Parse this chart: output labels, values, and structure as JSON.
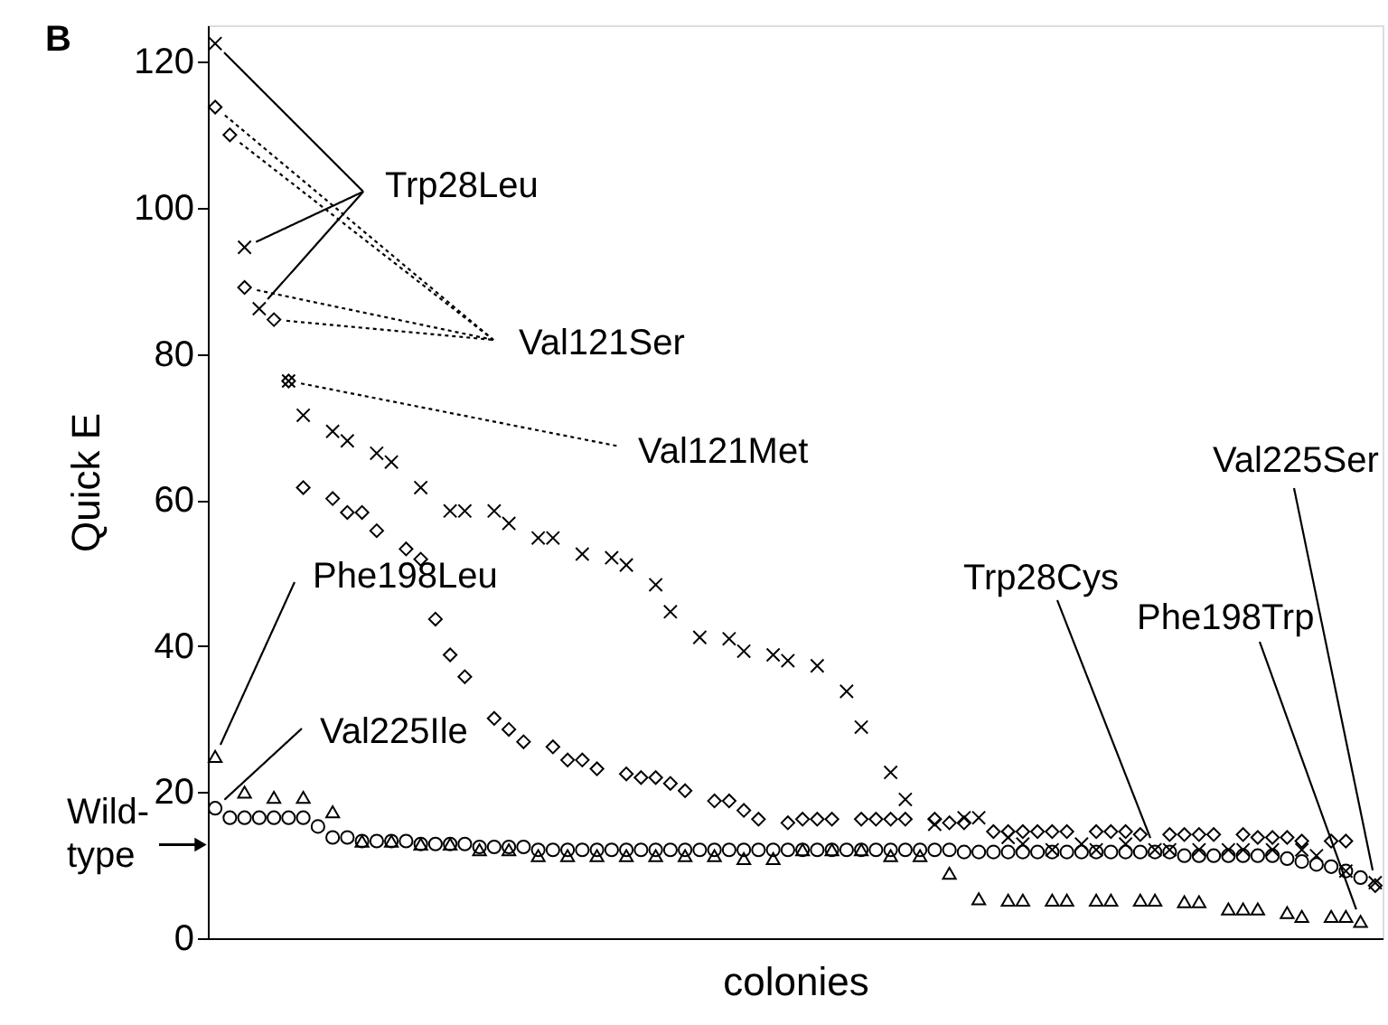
{
  "chart_data": {
    "type": "scatter",
    "title": "B",
    "ylabel": "Quick E",
    "xlabel": "colonies",
    "tick_labels": "y",
    "categories": [
      null,
      null,
      null,
      null,
      null,
      null,
      null,
      null,
      null,
      null,
      null,
      null,
      null,
      null,
      null,
      null,
      null,
      null,
      null,
      null,
      null,
      null,
      null,
      null,
      null,
      null,
      null,
      null,
      null,
      null,
      null,
      null,
      null,
      null,
      null,
      null,
      null,
      null,
      null,
      null,
      null,
      null,
      null,
      null,
      null,
      null,
      null,
      null,
      null,
      null,
      null,
      null,
      null,
      null,
      null,
      null,
      null,
      null,
      null,
      null,
      null,
      null,
      null,
      null,
      null,
      null,
      null,
      null,
      null,
      null,
      null,
      null,
      null,
      null,
      null,
      null,
      null,
      null,
      null,
      null
    ],
    "ylim": [
      0,
      125
    ],
    "yticks": [
      0,
      20,
      40,
      60,
      80,
      100,
      120
    ],
    "series": [
      {
        "color": "#000000",
        "marker": "cross",
        "values": [
          122.5,
          null,
          94.6,
          86.2,
          null,
          76.3,
          71.6,
          null,
          69.4,
          68.1,
          null,
          66.4,
          65.2,
          null,
          61.7,
          null,
          58.5,
          58.5,
          null,
          58.5,
          56.8,
          null,
          54.8,
          54.8,
          null,
          52.6,
          null,
          52.1,
          51.1,
          null,
          48.4,
          44.7,
          null,
          41.2,
          null,
          41,
          39.3,
          null,
          38.8,
          38,
          null,
          37.3,
          null,
          33.8,
          28.9,
          null,
          22.7,
          19,
          null,
          15.6,
          null,
          16.5,
          16.5,
          null,
          13.8,
          12.9,
          null,
          12.1,
          null,
          12.9,
          12.1,
          null,
          12.9,
          null,
          12.1,
          12.1,
          null,
          12.1,
          null,
          12.1,
          12.1,
          null,
          12.1,
          null,
          12.1,
          11.3,
          null,
          9.2,
          null,
          7.6
        ]
      },
      {
        "color": "#000000",
        "marker": "diamond",
        "values": [
          113.8,
          110,
          89.1,
          null,
          84.7,
          76.3,
          61.7,
          null,
          60.2,
          58.3,
          58.3,
          55.8,
          null,
          53.3,
          51.9,
          43.7,
          38.8,
          35.8,
          null,
          30.1,
          28.6,
          26.9,
          null,
          26.2,
          24.4,
          24.4,
          23.2,
          null,
          22.5,
          22,
          22,
          21.2,
          20.2,
          null,
          18.8,
          18.8,
          17.5,
          16.3,
          null,
          15.8,
          16.3,
          16.3,
          16.3,
          null,
          16.3,
          16.3,
          16.3,
          16.3,
          null,
          16.3,
          15.8,
          15.8,
          null,
          14.6,
          14.6,
          14.6,
          14.6,
          14.6,
          14.6,
          null,
          14.6,
          14.6,
          14.6,
          14.2,
          null,
          14.2,
          14.2,
          14.2,
          14.2,
          null,
          14.2,
          13.8,
          13.8,
          13.8,
          13.3,
          null,
          13.3,
          13.3,
          null,
          7.2
        ]
      },
      {
        "color": "#000000",
        "marker": "triangle",
        "values": [
          24.9,
          null,
          20,
          null,
          19.3,
          null,
          19.3,
          null,
          17.3,
          null,
          13.3,
          null,
          13.3,
          null,
          12.9,
          null,
          12.9,
          null,
          12.1,
          null,
          12.1,
          null,
          11.3,
          null,
          11.3,
          null,
          11.3,
          null,
          11.3,
          null,
          11.3,
          null,
          11.3,
          null,
          11.3,
          null,
          10.9,
          null,
          10.9,
          null,
          12.1,
          null,
          12.1,
          null,
          12.1,
          null,
          11.3,
          null,
          11.3,
          null,
          8.9,
          null,
          5.4,
          null,
          5.2,
          5.2,
          null,
          5.2,
          5.2,
          null,
          5.2,
          5.2,
          null,
          5.2,
          5.2,
          null,
          5,
          5,
          null,
          4,
          4,
          4,
          null,
          3.5,
          3,
          null,
          3,
          3,
          2.3,
          null
        ]
      },
      {
        "color": "#000000",
        "marker": "circle",
        "values": [
          17.8,
          16.5,
          16.5,
          16.5,
          16.5,
          16.5,
          16.5,
          15.3,
          13.8,
          13.8,
          13.3,
          13.3,
          13.3,
          13.3,
          12.9,
          12.9,
          12.9,
          12.9,
          12.5,
          12.5,
          12.5,
          12.5,
          12.1,
          12.1,
          12.1,
          12.1,
          12.1,
          12.1,
          12.1,
          12.1,
          12.1,
          12.1,
          12.1,
          12.1,
          12.1,
          12.1,
          12.1,
          12.1,
          12.1,
          12.1,
          12.1,
          12.1,
          12.1,
          12.1,
          12.1,
          12.1,
          12.1,
          12.1,
          12.1,
          12.1,
          12.1,
          11.8,
          11.8,
          11.8,
          11.8,
          11.8,
          11.8,
          11.8,
          11.8,
          11.8,
          11.8,
          11.8,
          11.8,
          11.8,
          11.8,
          11.8,
          11.3,
          11.3,
          11.3,
          11.3,
          11.3,
          11.3,
          11.3,
          10.9,
          10.5,
          10.1,
          9.8,
          9.2,
          8.3,
          null
        ]
      }
    ],
    "annotations": [
      "Trp28Leu",
      "Val121Ser",
      "Val121Met",
      "Phe198Leu",
      "Val225Ile",
      "Trp28Cys",
      "Phe198Trp",
      "Val225Ser"
    ],
    "ref_lines": [
      {
        "axis": "y",
        "value": 12.8,
        "label": "Wild-type"
      }
    ]
  }
}
